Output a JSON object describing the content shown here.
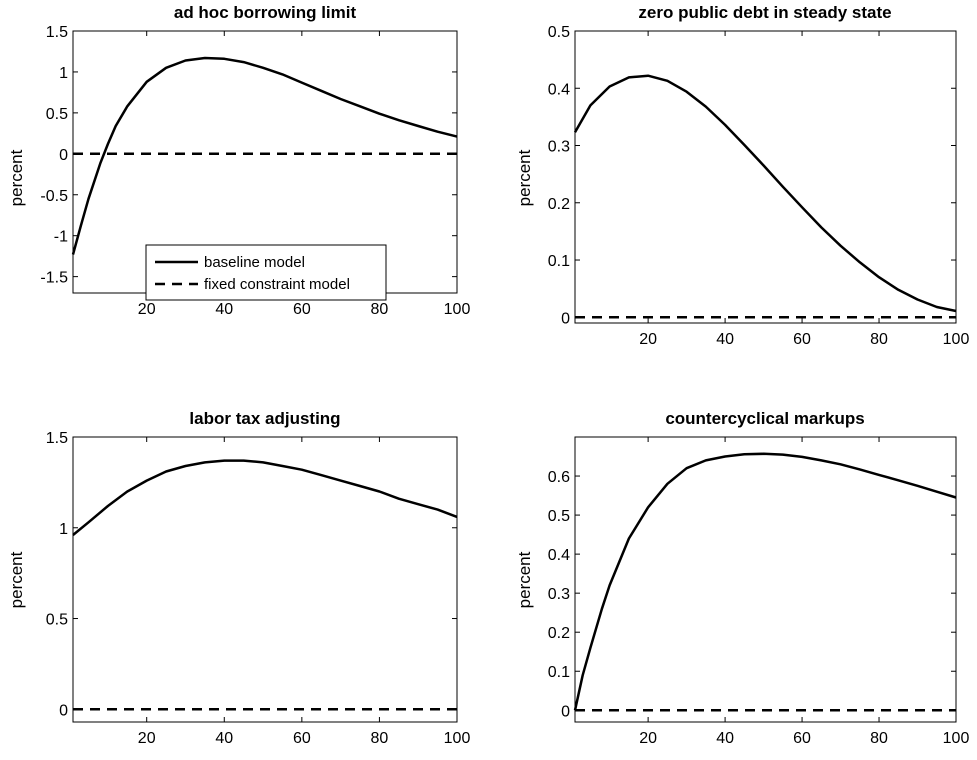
{
  "chart_data": [
    {
      "type": "line",
      "title": "ad hoc borrowing limit",
      "xlabel": "",
      "ylabel": "percent",
      "xlim": [
        1,
        100
      ],
      "ylim": [
        -1.7,
        1.5
      ],
      "xticks": [
        20,
        40,
        60,
        80,
        100
      ],
      "yticks": [
        -1.5,
        -1,
        -0.5,
        0,
        0.5,
        1,
        1.5
      ],
      "ytick_labels": [
        "-1.5",
        "-1",
        "-0.5",
        "0",
        "0.5",
        "1",
        "1.5"
      ],
      "legend": {
        "position": "bottom-center",
        "entries": [
          "baseline model",
          "fixed constraint model"
        ]
      },
      "series": [
        {
          "name": "baseline model",
          "style": "solid",
          "color": "#000000",
          "x": [
            1,
            3,
            5,
            8,
            10,
            12,
            15,
            20,
            25,
            30,
            35,
            40,
            45,
            50,
            55,
            60,
            65,
            70,
            75,
            80,
            85,
            90,
            95,
            100
          ],
          "y": [
            -1.23,
            -0.88,
            -0.55,
            -0.12,
            0.12,
            0.34,
            0.58,
            0.88,
            1.05,
            1.14,
            1.17,
            1.16,
            1.12,
            1.05,
            0.97,
            0.87,
            0.77,
            0.67,
            0.58,
            0.49,
            0.41,
            0.34,
            0.27,
            0.21
          ]
        },
        {
          "name": "fixed constraint model",
          "style": "dashed",
          "color": "#000000",
          "x": [
            1,
            100
          ],
          "y": [
            0,
            0
          ]
        }
      ]
    },
    {
      "type": "line",
      "title": "zero public debt in steady state",
      "xlabel": "",
      "ylabel": "percent",
      "xlim": [
        1,
        100
      ],
      "ylim": [
        -0.01,
        0.5
      ],
      "xticks": [
        20,
        40,
        60,
        80,
        100
      ],
      "yticks": [
        0,
        0.1,
        0.2,
        0.3,
        0.4,
        0.5
      ],
      "ytick_labels": [
        "0",
        "0.1",
        "0.2",
        "0.3",
        "0.4",
        "0.5"
      ],
      "series": [
        {
          "name": "baseline model",
          "style": "solid",
          "color": "#000000",
          "x": [
            1,
            5,
            10,
            15,
            20,
            25,
            30,
            35,
            40,
            45,
            50,
            55,
            60,
            65,
            70,
            75,
            80,
            85,
            90,
            95,
            100
          ],
          "y": [
            0.323,
            0.37,
            0.403,
            0.419,
            0.422,
            0.413,
            0.394,
            0.368,
            0.336,
            0.301,
            0.265,
            0.228,
            0.192,
            0.157,
            0.125,
            0.096,
            0.07,
            0.048,
            0.031,
            0.018,
            0.011
          ]
        },
        {
          "name": "fixed constraint model",
          "style": "dashed",
          "color": "#000000",
          "x": [
            1,
            100
          ],
          "y": [
            0,
            0
          ]
        }
      ]
    },
    {
      "type": "line",
      "title": "labor tax adjusting",
      "xlabel": "",
      "ylabel": "percent",
      "xlim": [
        1,
        100
      ],
      "ylim": [
        -0.07,
        1.5
      ],
      "xticks": [
        20,
        40,
        60,
        80,
        100
      ],
      "yticks": [
        0,
        0.5,
        1,
        1.5
      ],
      "ytick_labels": [
        "0",
        "0.5",
        "1",
        "1.5"
      ],
      "series": [
        {
          "name": "baseline model",
          "style": "solid",
          "color": "#000000",
          "x": [
            1,
            5,
            10,
            15,
            20,
            25,
            30,
            35,
            40,
            45,
            50,
            55,
            60,
            65,
            70,
            75,
            80,
            85,
            90,
            95,
            100
          ],
          "y": [
            0.96,
            1.03,
            1.12,
            1.2,
            1.26,
            1.31,
            1.34,
            1.36,
            1.37,
            1.37,
            1.36,
            1.34,
            1.32,
            1.29,
            1.26,
            1.23,
            1.2,
            1.16,
            1.13,
            1.1,
            1.06
          ]
        },
        {
          "name": "fixed constraint model",
          "style": "dashed",
          "color": "#000000",
          "x": [
            1,
            100
          ],
          "y": [
            0,
            0
          ]
        }
      ]
    },
    {
      "type": "line",
      "title": "countercyclical markups",
      "xlabel": "",
      "ylabel": "percent",
      "xlim": [
        1,
        100
      ],
      "ylim": [
        -0.03,
        0.7
      ],
      "xticks": [
        20,
        40,
        60,
        80,
        100
      ],
      "yticks": [
        0,
        0.1,
        0.2,
        0.3,
        0.4,
        0.5,
        0.6
      ],
      "ytick_labels": [
        "0",
        "0.1",
        "0.2",
        "0.3",
        "0.4",
        "0.5",
        "0.6"
      ],
      "series": [
        {
          "name": "baseline model",
          "style": "solid",
          "color": "#000000",
          "x": [
            1,
            3,
            5,
            8,
            10,
            15,
            20,
            25,
            30,
            35,
            40,
            45,
            50,
            55,
            60,
            65,
            70,
            75,
            80,
            85,
            90,
            95,
            100
          ],
          "y": [
            0.0,
            0.09,
            0.16,
            0.26,
            0.32,
            0.44,
            0.52,
            0.58,
            0.62,
            0.64,
            0.65,
            0.656,
            0.657,
            0.655,
            0.649,
            0.64,
            0.63,
            0.617,
            0.603,
            0.589,
            0.575,
            0.56,
            0.545
          ]
        },
        {
          "name": "fixed constraint model",
          "style": "dashed",
          "color": "#000000",
          "x": [
            1,
            100
          ],
          "y": [
            0,
            0
          ]
        }
      ]
    }
  ]
}
